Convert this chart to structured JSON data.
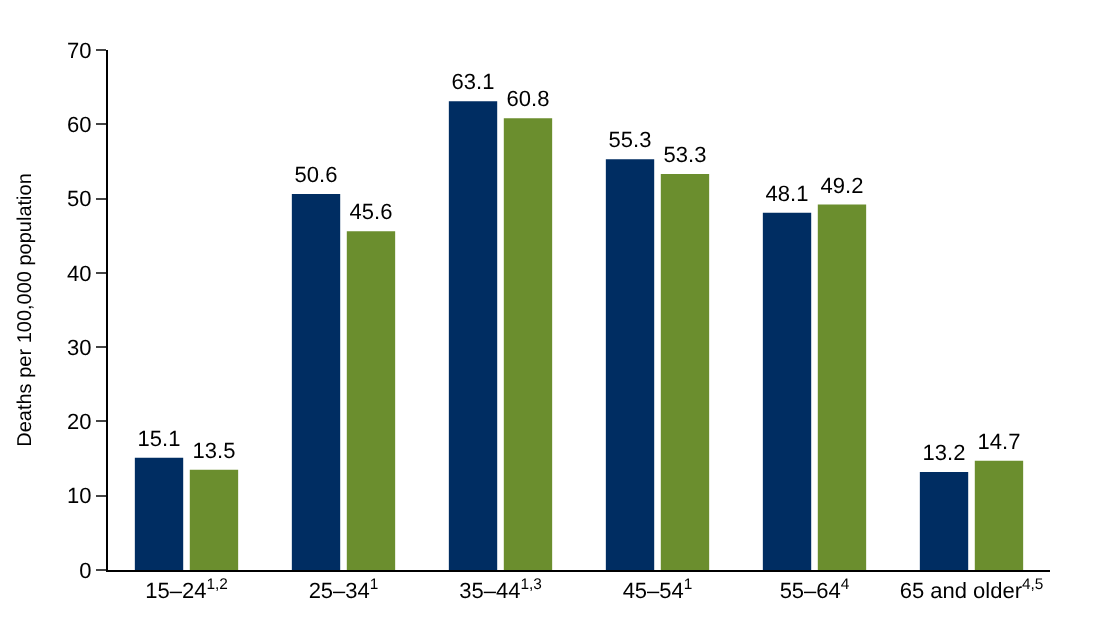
{
  "chart_data": {
    "type": "bar",
    "ylabel": "Deaths per 100,000 population",
    "categories": [
      "15–24$^{1,2}$",
      "25–34$^{1}$",
      "35–44$^{1,3}$",
      "45–54$^{1}$",
      "55–64$^{4}$",
      "65 and older$^{4,5}$"
    ],
    "series": [
      {
        "color": "#002d62",
        "values": [
          15.1,
          50.6,
          63.1,
          55.3,
          48.1,
          13.2
        ]
      },
      {
        "color": "#6b8e2e",
        "values": [
          13.5,
          45.6,
          60.8,
          53.3,
          49.2,
          14.7
        ]
      }
    ],
    "ylim": [
      0,
      70
    ],
    "yticks": [
      0,
      10,
      20,
      30,
      40,
      50,
      60,
      70
    ],
    "data_labels": true,
    "legend": false
  }
}
